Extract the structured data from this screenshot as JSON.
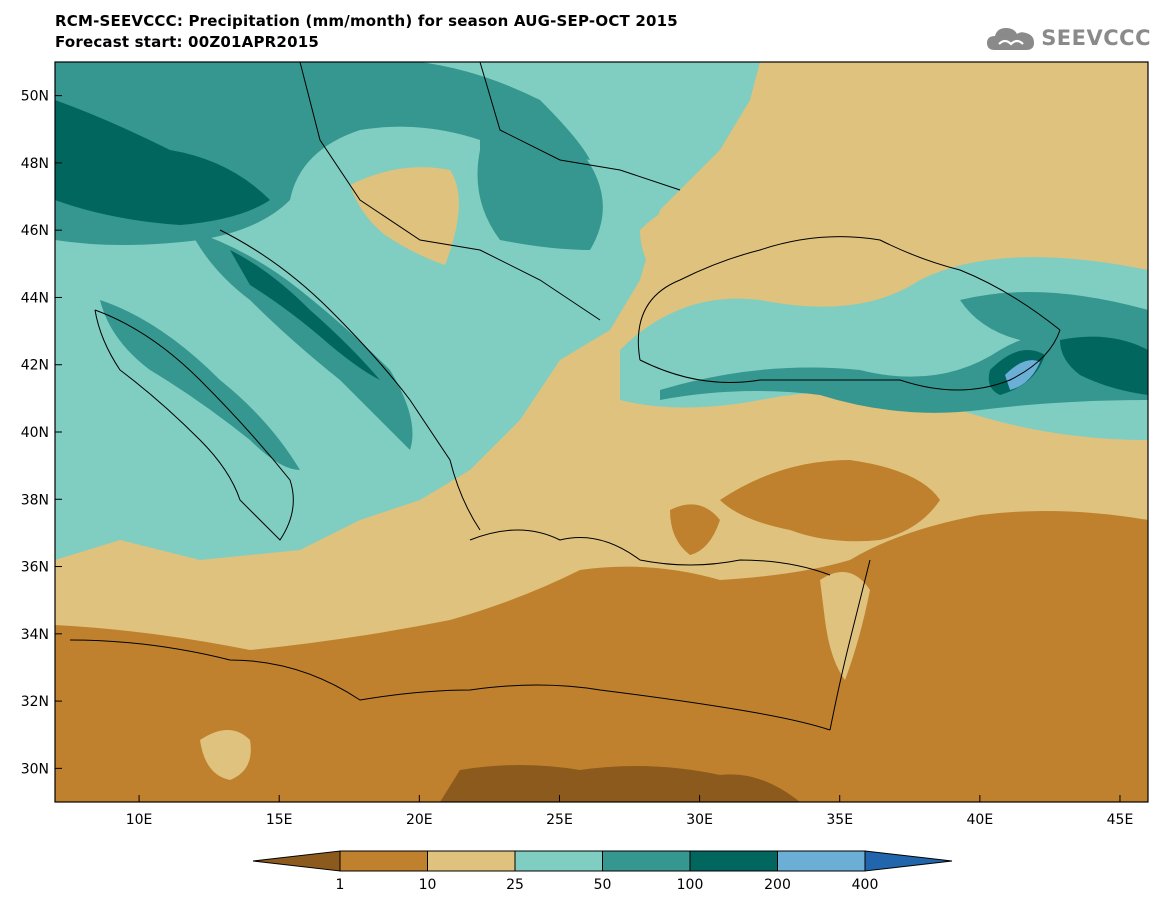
{
  "header": {
    "title_line1": "RCM-SEEVCCC: Precipitation (mm/month) for season AUG-SEP-OCT 2015",
    "title_line2": "Forecast start: 00Z01APR2015"
  },
  "logo": {
    "icon": "cloud-icon",
    "text": "SEEVCCC",
    "color": "#8a8a8a"
  },
  "map": {
    "region": "Eastern Mediterranean / Balkans / Anatolia",
    "lon_range": [
      7,
      46
    ],
    "lat_range": [
      29,
      51
    ],
    "lat_ticks": [
      "30N",
      "32N",
      "34N",
      "36N",
      "38N",
      "40N",
      "42N",
      "44N",
      "46N",
      "48N",
      "50N"
    ],
    "lon_ticks": [
      "10E",
      "15E",
      "20E",
      "25E",
      "30E",
      "35E",
      "40E",
      "45E"
    ]
  },
  "colorbar": {
    "labels": [
      "1",
      "10",
      "25",
      "50",
      "100",
      "200",
      "400"
    ],
    "colors": [
      "#8c5a1c",
      "#bf812d",
      "#dfc27d",
      "#80cdc1",
      "#35978f",
      "#01665e",
      "#6baed6",
      "#2166ac"
    ]
  }
}
